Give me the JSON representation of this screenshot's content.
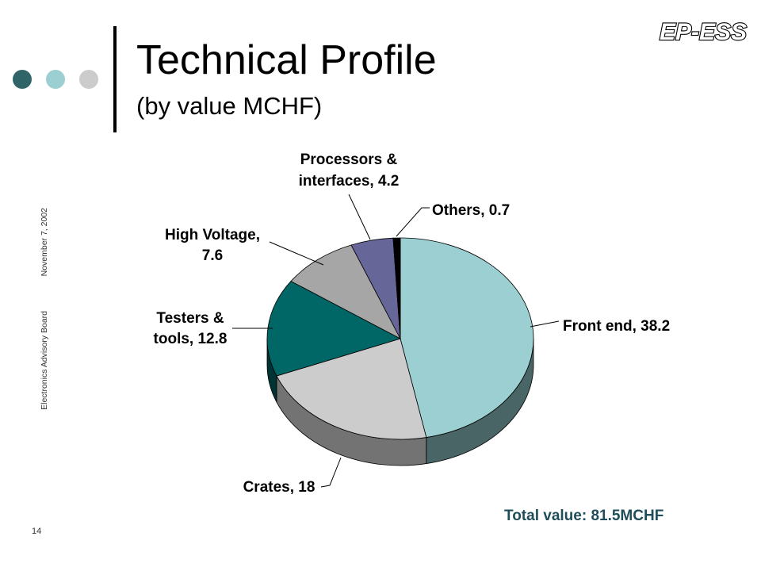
{
  "slide": {
    "title": "Technical Profile",
    "subtitle": "(by value MCHF)",
    "logo_text": "EP-ESS",
    "side_date": "November 7, 2002",
    "side_board": "Electronics Advisory Board",
    "page_number": "14",
    "total": "Total value: 81.5MCHF",
    "dot_colors": [
      "#2f6569",
      "#9ccfd1",
      "#cccccc"
    ]
  },
  "chart_data": {
    "type": "pie",
    "title": "",
    "categories": [
      "Front end",
      "Crates",
      "Testers & tools",
      "High Voltage",
      "Processors & interfaces",
      "Others"
    ],
    "values": [
      38.2,
      18,
      12.8,
      7.6,
      4.2,
      0.7
    ],
    "colors": [
      "#9ccfd1",
      "#cccccc",
      "#006666",
      "#a6a6a6",
      "#666699",
      "#000000"
    ],
    "side_colors": [
      "#4a6566",
      "#737373",
      "#003333",
      "#595959",
      "#333355",
      "#000000"
    ],
    "labels": [
      [
        "Front end, 38.2"
      ],
      [
        "Crates, 18"
      ],
      [
        "Testers &",
        "tools, 12.8"
      ],
      [
        "High Voltage,",
        "7.6"
      ],
      [
        "Processors &",
        "interfaces, 4.2"
      ],
      [
        "Others, 0.7"
      ]
    ],
    "legend": "none"
  }
}
